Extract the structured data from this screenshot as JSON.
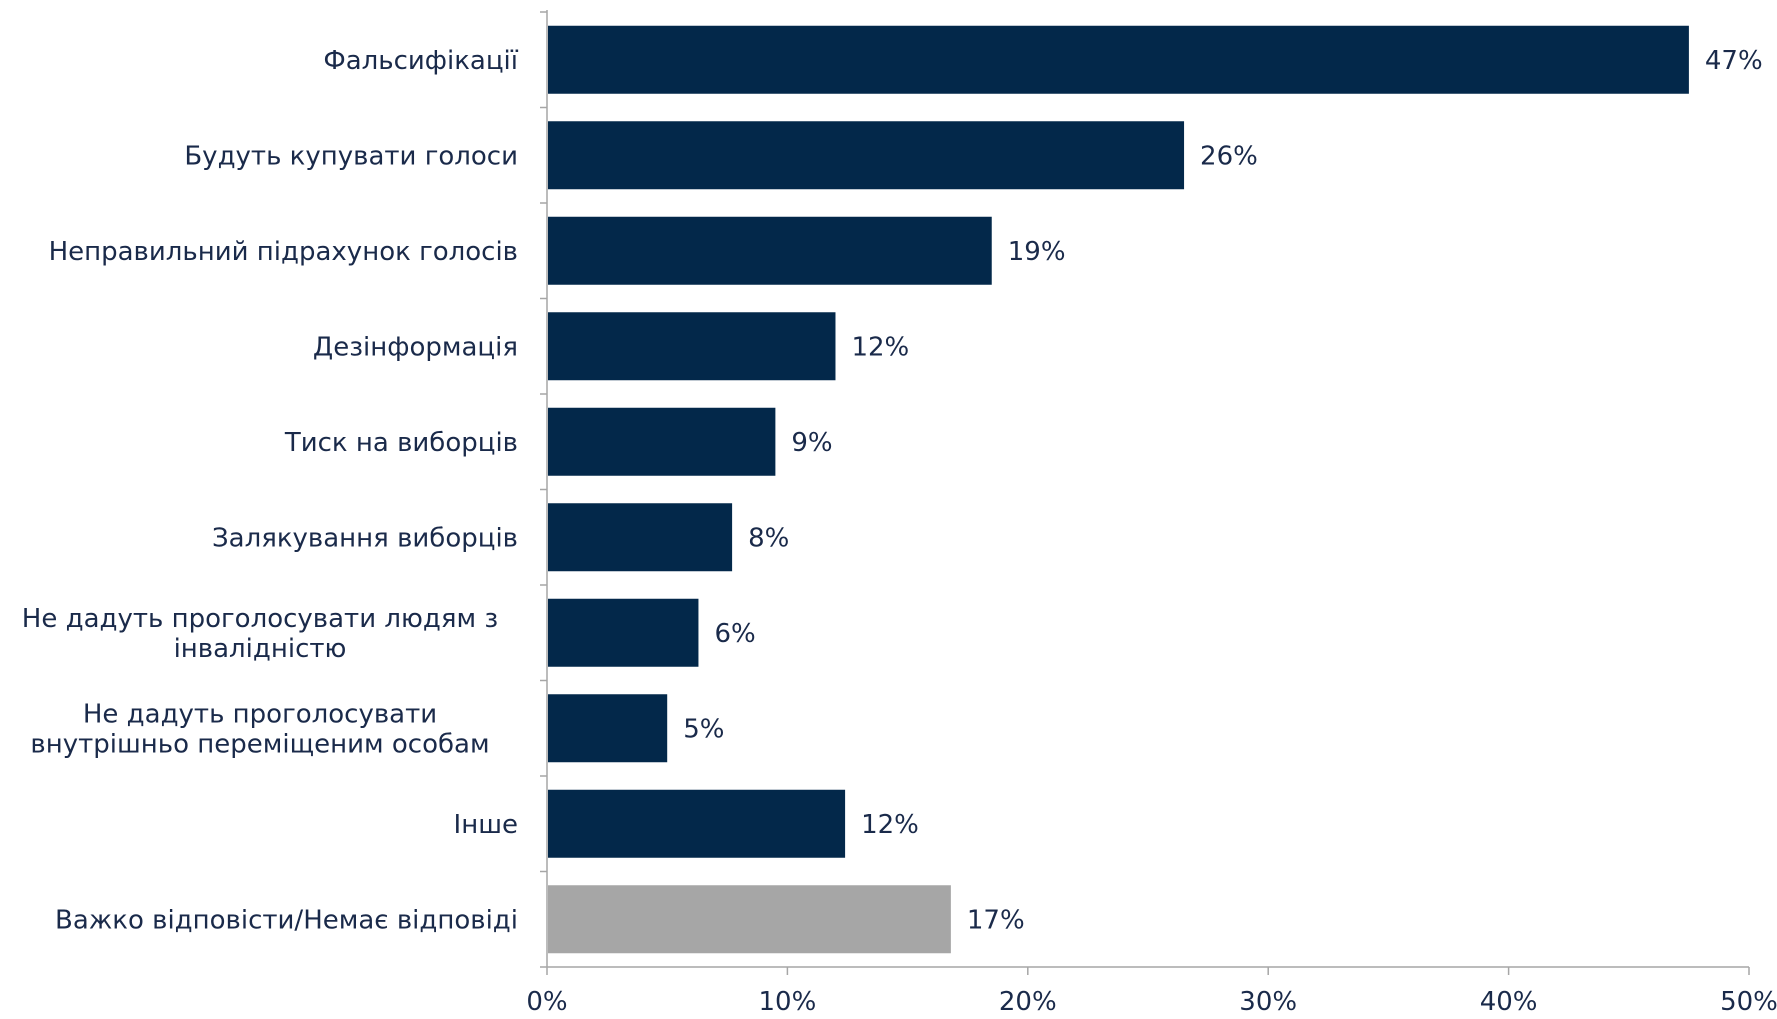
{
  "chart_data": {
    "type": "bar",
    "orientation": "horizontal",
    "categories": [
      [
        "Фальсифікації"
      ],
      [
        "Будуть купувати голоси"
      ],
      [
        "Неправильний підрахунок голосів"
      ],
      [
        "Дезінформація"
      ],
      [
        "Тиск на виборців"
      ],
      [
        "Залякування виборців"
      ],
      [
        "Не дадуть проголосувати людям з",
        "інвалідністю"
      ],
      [
        "Не дадуть проголосувати",
        "внутрішньо переміщеним особам"
      ],
      [
        "Інше"
      ],
      [
        "Важко відповісти/Немає відповіді"
      ]
    ],
    "values": [
      47.5,
      26.5,
      18.5,
      12,
      9.5,
      7.7,
      6.3,
      5,
      12.4,
      16.8
    ],
    "value_labels": [
      "47%",
      "26%",
      "19%",
      "12%",
      "9%",
      "8%",
      "6%",
      "5%",
      "12%",
      "17%"
    ],
    "bar_colors": [
      "#03284a",
      "#03284a",
      "#03284a",
      "#03284a",
      "#03284a",
      "#03284a",
      "#03284a",
      "#03284a",
      "#03284a",
      "#a6a6a6"
    ],
    "xlim": [
      0,
      50
    ],
    "xticks": [
      0,
      10,
      20,
      30,
      40,
      50
    ],
    "xtick_labels": [
      "0%",
      "10%",
      "20%",
      "30%",
      "40%",
      "50%"
    ],
    "grid": false,
    "legend": "none"
  }
}
